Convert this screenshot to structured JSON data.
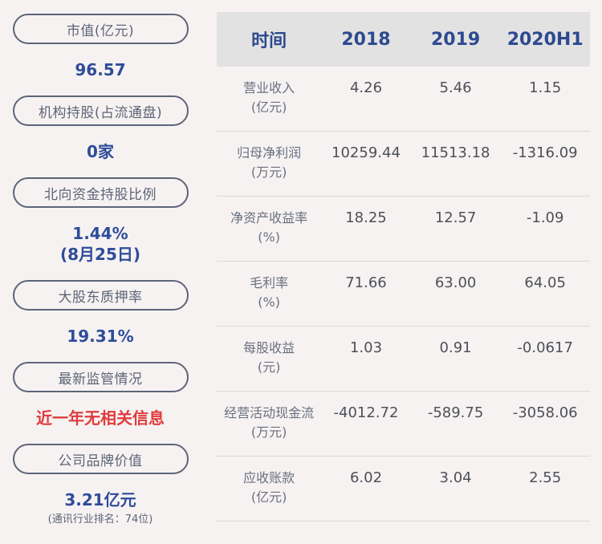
{
  "colors": {
    "page_background": "#f7f2f2",
    "pill_border": "#5c6577",
    "value_blue": "#2e4d99",
    "alert_red": "#e03c3c",
    "table_header_bg": "#e3e2e2",
    "table_header_text": "#2d4a8f",
    "row_label_gray": "#68717f",
    "row_value_gray": "#4b5058"
  },
  "sidebar": {
    "items": [
      {
        "label": "市值(亿元)",
        "lines": [
          "96.57"
        ],
        "color": "blue"
      },
      {
        "label": "机构持股(占流通盘)",
        "lines": [
          "0家"
        ],
        "color": "blue"
      },
      {
        "label": "北向资金持股比例",
        "lines": [
          "1.44%",
          "(8月25日)"
        ],
        "color": "blue"
      },
      {
        "label": "大股东质押率",
        "lines": [
          "19.31%"
        ],
        "color": "blue"
      },
      {
        "label": "最新监管情况",
        "lines": [
          "近一年无相关信息"
        ],
        "color": "red"
      },
      {
        "label": "公司品牌价值",
        "lines": [
          "3.21亿元"
        ],
        "color": "blue",
        "subtitle": "(通讯行业排名：74位)"
      }
    ]
  },
  "table": {
    "header": [
      "时间",
      "2018",
      "2019",
      "2020H1"
    ],
    "rows": [
      {
        "label": "营业收入",
        "unit": "(亿元)",
        "values": [
          "4.26",
          "5.46",
          "1.15"
        ]
      },
      {
        "label": "归母净利润",
        "unit": "(万元)",
        "values": [
          "10259.44",
          "11513.18",
          "-1316.09"
        ]
      },
      {
        "label": "净资产收益率",
        "unit": "(%)",
        "values": [
          "18.25",
          "12.57",
          "-1.09"
        ]
      },
      {
        "label": "毛利率",
        "unit": "(%)",
        "values": [
          "71.66",
          "63.00",
          "64.05"
        ]
      },
      {
        "label": "每股收益",
        "unit": "(元)",
        "values": [
          "1.03",
          "0.91",
          "-0.0617"
        ]
      },
      {
        "label": "经营活动现金流",
        "unit": "(万元)",
        "values": [
          "-4012.72",
          "-589.75",
          "-3058.06"
        ]
      },
      {
        "label": "应收账款",
        "unit": "(亿元)",
        "values": [
          "6.02",
          "3.04",
          "2.55"
        ]
      }
    ]
  },
  "chart_data": {
    "type": "table",
    "title": "财务指标",
    "categories": [
      "2018",
      "2019",
      "2020H1"
    ],
    "series": [
      {
        "name": "营业收入(亿元)",
        "values": [
          4.26,
          5.46,
          1.15
        ]
      },
      {
        "name": "归母净利润(万元)",
        "values": [
          10259.44,
          11513.18,
          -1316.09
        ]
      },
      {
        "name": "净资产收益率(%)",
        "values": [
          18.25,
          12.57,
          -1.09
        ]
      },
      {
        "name": "毛利率(%)",
        "values": [
          71.66,
          63.0,
          64.05
        ]
      },
      {
        "name": "每股收益(元)",
        "values": [
          1.03,
          0.91,
          -0.0617
        ]
      },
      {
        "name": "经营活动现金流(万元)",
        "values": [
          -4012.72,
          -589.75,
          -3058.06
        ]
      },
      {
        "name": "应收账款(亿元)",
        "values": [
          6.02,
          3.04,
          2.55
        ]
      }
    ]
  }
}
